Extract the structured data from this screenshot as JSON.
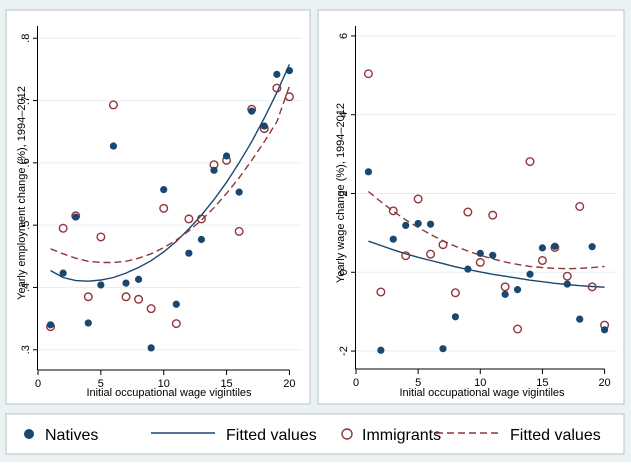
{
  "chart_data": [
    {
      "type": "scatter",
      "panel": "left",
      "xlabel": "Initial occupational wage vigintiles",
      "ylabel": "Yearly employment change (%), 1994–2012",
      "xlim": [
        0,
        21
      ],
      "ylim": [
        0.29,
        0.81
      ],
      "x_ticks": [
        0,
        5,
        10,
        15,
        20
      ],
      "y_ticks": [
        0.3,
        0.4,
        0.5,
        0.6,
        0.7,
        0.8
      ],
      "y_tick_labels": [
        ".3",
        ".4",
        ".5",
        ".6",
        ".7",
        ".8"
      ],
      "grid": true,
      "series": [
        {
          "name": "Natives",
          "x": [
            1,
            2,
            3,
            4,
            5,
            6,
            7,
            8,
            9,
            10,
            11,
            12,
            13,
            14,
            15,
            16,
            17,
            18,
            19,
            20
          ],
          "y": [
            0.34,
            0.423,
            0.513,
            0.343,
            0.404,
            0.627,
            0.407,
            0.413,
            0.303,
            0.557,
            0.373,
            0.455,
            0.477,
            0.588,
            0.611,
            0.553,
            0.683,
            0.659,
            0.742,
            0.748
          ]
        },
        {
          "name": "Fitted values",
          "x": [
            1,
            2,
            3,
            4,
            5,
            6,
            7,
            8,
            9,
            10,
            11,
            12,
            13,
            14,
            15,
            16,
            17,
            18,
            19,
            20
          ],
          "y": [
            0.427,
            0.416,
            0.411,
            0.41,
            0.412,
            0.416,
            0.423,
            0.432,
            0.443,
            0.457,
            0.474,
            0.494,
            0.516,
            0.541,
            0.569,
            0.6,
            0.634,
            0.672,
            0.713,
            0.758
          ]
        },
        {
          "name": "Immigrants",
          "x": [
            1,
            2,
            3,
            4,
            5,
            6,
            7,
            8,
            9,
            10,
            11,
            12,
            13,
            14,
            15,
            16,
            17,
            18,
            19,
            20
          ],
          "y": [
            0.337,
            0.495,
            0.515,
            0.385,
            0.481,
            0.693,
            0.385,
            0.381,
            0.366,
            0.527,
            0.342,
            0.51,
            0.51,
            0.597,
            0.604,
            0.49,
            0.686,
            0.655,
            0.72,
            0.706
          ]
        },
        {
          "name": "Fitted values",
          "x": [
            1,
            2,
            3,
            4,
            5,
            6,
            7,
            8,
            9,
            10,
            11,
            12,
            13,
            14,
            15,
            16,
            17,
            18,
            19,
            20
          ],
          "y": [
            0.462,
            0.454,
            0.447,
            0.442,
            0.44,
            0.44,
            0.442,
            0.447,
            0.454,
            0.464,
            0.476,
            0.491,
            0.508,
            0.528,
            0.551,
            0.576,
            0.604,
            0.634,
            0.666,
            0.723
          ]
        }
      ]
    },
    {
      "type": "scatter",
      "panel": "right",
      "xlabel": "Initial occupational wage vigintiles",
      "ylabel": "Yearly wage change (%), 1994–2012",
      "xlim": [
        0,
        21
      ],
      "ylim": [
        -2.1,
        6.1
      ],
      "x_ticks": [
        0,
        5,
        10,
        15,
        20
      ],
      "y_ticks": [
        -2,
        0,
        2,
        4,
        6
      ],
      "y_tick_labels": [
        "-2",
        "0",
        "2",
        "4",
        "6"
      ],
      "grid": true,
      "series": [
        {
          "name": "Natives",
          "x": [
            1,
            2,
            3,
            4,
            5,
            6,
            7,
            8,
            9,
            10,
            11,
            12,
            13,
            14,
            15,
            16,
            17,
            18,
            19,
            20
          ],
          "y": [
            2.55,
            -1.98,
            0.84,
            1.19,
            1.24,
            1.22,
            -1.94,
            -1.13,
            0.08,
            0.48,
            0.43,
            -0.56,
            -0.44,
            -0.05,
            0.62,
            0.66,
            -0.3,
            -1.19,
            0.65,
            -1.46
          ]
        },
        {
          "name": "Fitted values",
          "x": [
            1,
            2,
            3,
            4,
            5,
            6,
            7,
            8,
            9,
            10,
            11,
            12,
            13,
            14,
            15,
            16,
            17,
            18,
            19,
            20
          ],
          "y": [
            0.79,
            0.68,
            0.57,
            0.47,
            0.38,
            0.3,
            0.22,
            0.14,
            0.07,
            0.01,
            -0.05,
            -0.1,
            -0.15,
            -0.2,
            -0.24,
            -0.28,
            -0.31,
            -0.34,
            -0.36,
            -0.38
          ]
        },
        {
          "name": "Immigrants",
          "x": [
            1,
            2,
            3,
            4,
            5,
            6,
            7,
            8,
            9,
            10,
            11,
            12,
            13,
            14,
            15,
            16,
            17,
            18,
            19,
            20
          ],
          "y": [
            5.04,
            -0.5,
            1.56,
            0.42,
            1.86,
            0.46,
            0.7,
            -0.52,
            1.53,
            0.25,
            1.45,
            -0.37,
            -1.44,
            2.81,
            0.3,
            0.63,
            -0.1,
            1.67,
            -0.37,
            -1.34
          ]
        },
        {
          "name": "Fitted values",
          "x": [
            1,
            2,
            3,
            4,
            5,
            6,
            7,
            8,
            9,
            10,
            11,
            12,
            13,
            14,
            15,
            16,
            17,
            18,
            19,
            20
          ],
          "y": [
            2.05,
            1.79,
            1.55,
            1.33,
            1.14,
            0.96,
            0.8,
            0.66,
            0.54,
            0.43,
            0.34,
            0.26,
            0.2,
            0.15,
            0.12,
            0.1,
            0.09,
            0.1,
            0.12,
            0.15
          ]
        }
      ]
    }
  ],
  "legend": {
    "items": [
      {
        "label": "Natives",
        "kind": "marker-filled"
      },
      {
        "label": "Fitted values",
        "kind": "line-solid"
      },
      {
        "label": "Immigrants",
        "kind": "marker-hollow"
      },
      {
        "label": "Fitted values",
        "kind": "line-dashed"
      }
    ]
  },
  "colors": {
    "background": "#eaf2f3",
    "panel": "#ffffff",
    "grid": "#e6eef0",
    "natives": "#1a476f",
    "immigrants": "#90353b"
  }
}
